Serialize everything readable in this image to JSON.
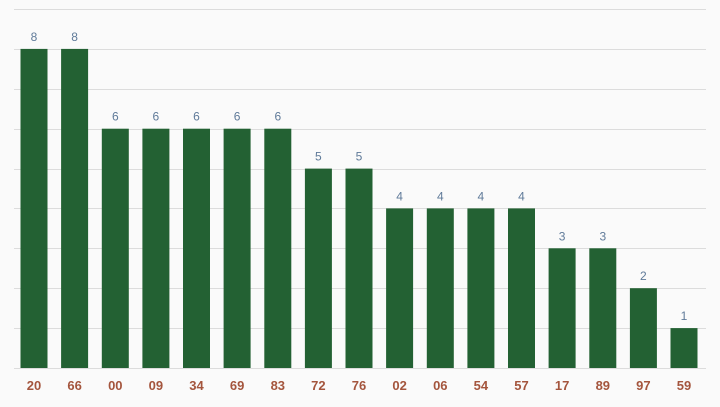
{
  "chart_data": {
    "type": "bar",
    "categories": [
      "20",
      "66",
      "00",
      "09",
      "34",
      "69",
      "83",
      "72",
      "76",
      "02",
      "06",
      "54",
      "57",
      "17",
      "89",
      "97",
      "59"
    ],
    "values": [
      8,
      8,
      6,
      6,
      6,
      6,
      6,
      5,
      5,
      4,
      4,
      4,
      4,
      3,
      3,
      2,
      1
    ],
    "title": "",
    "xlabel": "",
    "ylabel": "",
    "ylim": [
      0,
      9
    ],
    "grid": true,
    "data_labels": true,
    "colors": {
      "bar": "#236133",
      "value_label": "#5f7a99",
      "category_label": "#a4553d",
      "gridline": "#dcdcdc",
      "background": "#fafafa"
    }
  }
}
